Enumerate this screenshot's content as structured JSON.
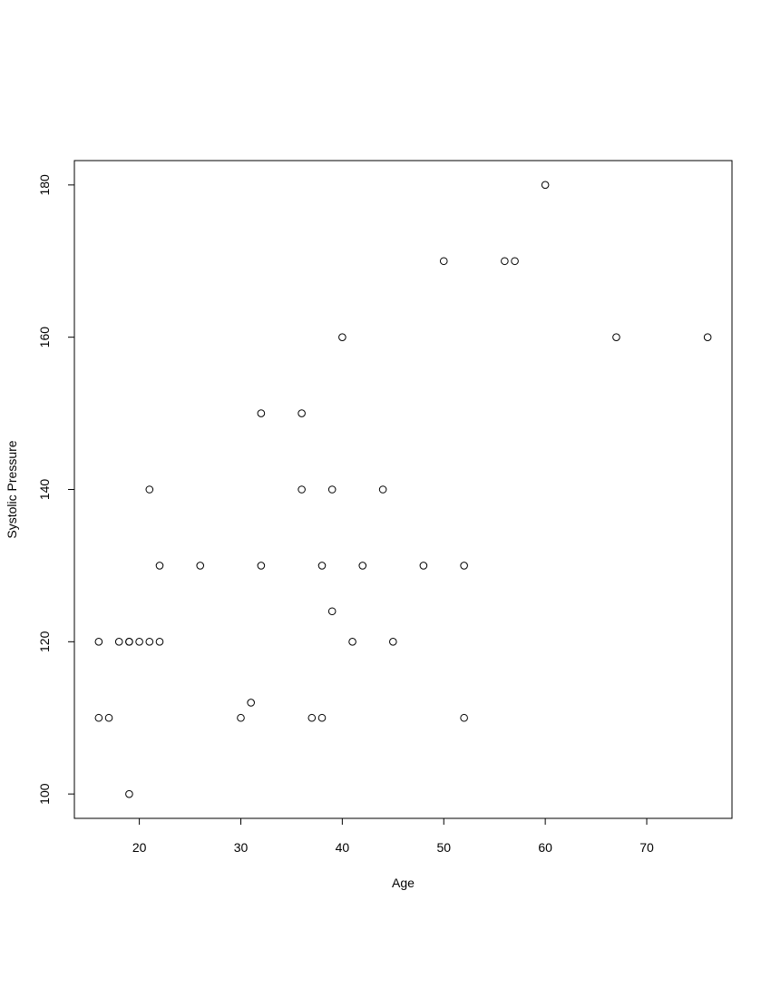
{
  "chart_data": {
    "type": "scatter",
    "x_label": "Age",
    "y_label": "Systolic Pressure",
    "x": [
      16,
      16,
      17,
      18,
      19,
      19,
      19,
      20,
      21,
      21,
      22,
      22,
      26,
      30,
      31,
      32,
      32,
      36,
      36,
      37,
      38,
      38,
      39,
      39,
      40,
      41,
      42,
      44,
      45,
      48,
      50,
      52,
      52,
      56,
      57,
      60,
      67,
      76
    ],
    "values": [
      120,
      110,
      110,
      120,
      120,
      120,
      100,
      120,
      120,
      140,
      130,
      120,
      130,
      110,
      112,
      150,
      130,
      150,
      140,
      110,
      130,
      110,
      140,
      124,
      160,
      120,
      130,
      140,
      120,
      130,
      170,
      130,
      110,
      170,
      170,
      180,
      160,
      160
    ],
    "color": "#000000",
    "xlim": [
      13.6,
      78.4
    ],
    "ylim": [
      96.8,
      183.2
    ],
    "xticks": [
      20,
      30,
      40,
      50,
      60,
      70
    ],
    "yticks": [
      100,
      120,
      140,
      160,
      180
    ]
  }
}
